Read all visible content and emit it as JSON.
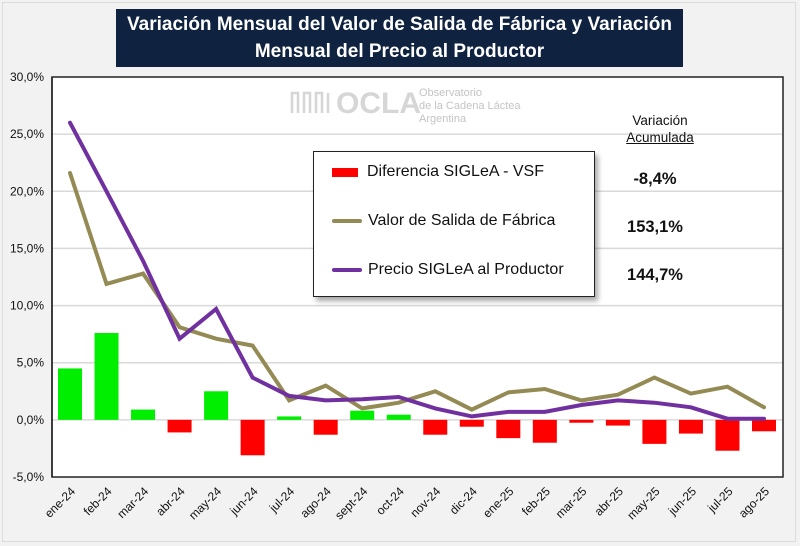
{
  "title": {
    "line1": "Variación Mensual del Valor de Salida de Fábrica y Variación",
    "line2": "Mensual del Precio al Productor"
  },
  "watermark": {
    "brand": "OCLA",
    "line1": "Observatorio",
    "line2": "de la Cadena Láctea",
    "line3": "Argentina"
  },
  "accumulated": {
    "header_line1": "Variación",
    "header_line2": "Acumulada",
    "values": [
      "-8,4%",
      "153,1%",
      "144,7%"
    ]
  },
  "chart_data": {
    "type": "bar+line",
    "title": "Variación Mensual del Valor de Salida de Fábrica y Variación Mensual del Precio al Productor",
    "xlabel": "",
    "ylabel": "",
    "ylim": [
      -5,
      30
    ],
    "yticks": [
      -5,
      0,
      5,
      10,
      15,
      20,
      25,
      30
    ],
    "ytick_labels": [
      "-5,0%",
      "0,0%",
      "5,0%",
      "10,0%",
      "15,0%",
      "20,0%",
      "25,0%",
      "30,0%"
    ],
    "grid": true,
    "legend_position": "center-top",
    "categories": [
      "ene-24",
      "feb-24",
      "mar-24",
      "abr-24",
      "may-24",
      "jun-24",
      "jul-24",
      "ago-24",
      "sept-24",
      "oct-24",
      "nov-24",
      "dic-24",
      "ene-25",
      "feb-25",
      "mar-25",
      "abr-25",
      "may-25",
      "jun-25",
      "jul-25",
      "ago-25"
    ],
    "series": [
      {
        "name": "Diferencia SIGLeA - VSF",
        "kind": "bar",
        "color_positive": "#00ee00",
        "color_negative": "#ff0000",
        "values": [
          4.5,
          7.6,
          0.9,
          -1.1,
          2.5,
          -3.1,
          0.3,
          -1.3,
          0.8,
          0.45,
          -1.3,
          -0.6,
          -1.6,
          -2.0,
          -0.25,
          -0.5,
          -2.1,
          -1.2,
          -2.7,
          -1.0
        ]
      },
      {
        "name": "Valor de Salida de Fábrica",
        "kind": "line",
        "color": "#948a54",
        "values": [
          21.6,
          11.9,
          12.8,
          8.1,
          7.1,
          6.5,
          1.7,
          3.0,
          1.0,
          1.5,
          2.5,
          0.9,
          2.4,
          2.7,
          1.7,
          2.2,
          3.7,
          2.3,
          2.9,
          1.1
        ]
      },
      {
        "name": "Precio SIGLeA al Productor",
        "kind": "line",
        "color": "#7030a0",
        "values": [
          26.0,
          20.0,
          13.9,
          7.1,
          9.7,
          3.7,
          2.1,
          1.7,
          1.8,
          2.0,
          1.0,
          0.3,
          0.7,
          0.7,
          1.3,
          1.7,
          1.5,
          1.1,
          0.1,
          0.1
        ]
      }
    ],
    "legend": [
      "Diferencia SIGLeA - VSF",
      "Valor de Salida de Fábrica",
      "Precio SIGLeA al Productor"
    ]
  }
}
